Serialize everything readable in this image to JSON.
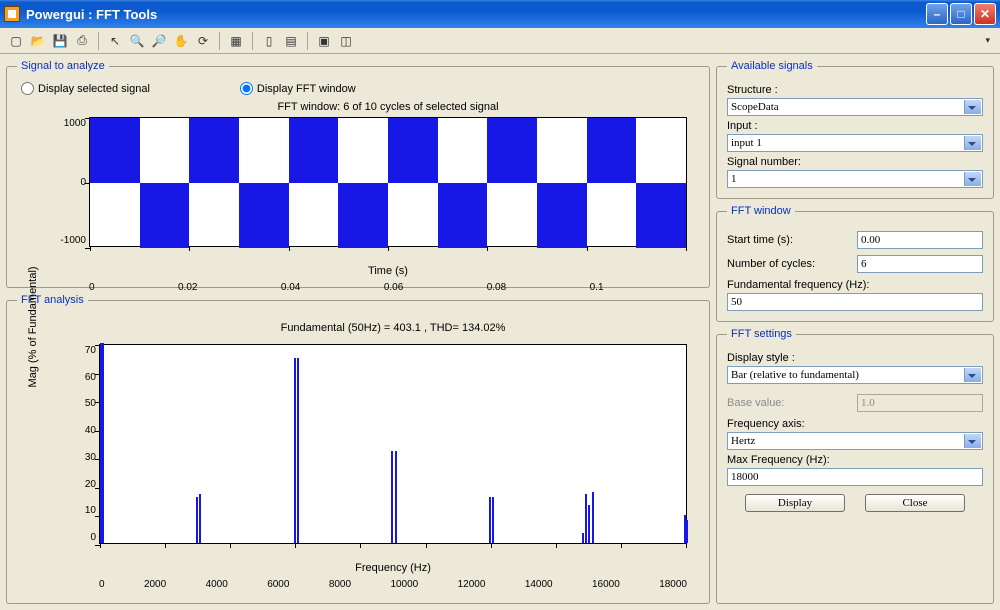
{
  "window": {
    "title": "Powergui : FFT Tools"
  },
  "toolbar": {
    "icons": [
      "new",
      "open",
      "save",
      "print",
      "sep",
      "pointer",
      "zoom-in",
      "zoom-out",
      "pan",
      "rotate",
      "sep",
      "data-cursor",
      "sep",
      "colorbar",
      "legend",
      "sep",
      "dock",
      "undock"
    ]
  },
  "signal_panel": {
    "legend": "Signal to analyze",
    "radio1": "Display selected signal",
    "radio2": "Display FFT window",
    "selected": 2,
    "chart": {
      "title": "FFT window: 6 of 10 cycles of selected signal",
      "ylabel": "",
      "xlabel": "Time (s)",
      "yticks": [
        "1000",
        "0",
        "-1000"
      ],
      "xticks": [
        "0",
        "0.02",
        "0.04",
        "0.06",
        "0.08",
        "0.1",
        ""
      ],
      "xlim": [
        0,
        0.12
      ],
      "ylim": [
        -1000,
        1000
      ],
      "waveform_period": 0.02,
      "amplitude": 1000,
      "color": "#1818e6",
      "background": "#ffffff"
    }
  },
  "fft_panel": {
    "legend": "FFT analysis",
    "title": "Fundamental (50Hz) = 403.1 , THD= 134.02%",
    "ylabel": "Mag (% of Fundamental)",
    "xlabel": "Frequency (Hz)",
    "yticks": [
      "70",
      "60",
      "50",
      "40",
      "30",
      "20",
      "10",
      "0"
    ],
    "xticks": [
      "0",
      "2000",
      "4000",
      "6000",
      "8000",
      "10000",
      "12000",
      "14000",
      "16000",
      "18000"
    ],
    "xlim": [
      0,
      18000
    ],
    "ylim": [
      0,
      78
    ],
    "bars": [
      {
        "x": 0,
        "h": 78
      },
      {
        "x": 50,
        "h": 78
      },
      {
        "x": 2950,
        "h": 18
      },
      {
        "x": 3050,
        "h": 19
      },
      {
        "x": 5950,
        "h": 72
      },
      {
        "x": 6050,
        "h": 72
      },
      {
        "x": 8950,
        "h": 36
      },
      {
        "x": 9050,
        "h": 36
      },
      {
        "x": 11950,
        "h": 18
      },
      {
        "x": 12050,
        "h": 18
      },
      {
        "x": 14800,
        "h": 4
      },
      {
        "x": 14900,
        "h": 19
      },
      {
        "x": 15000,
        "h": 15
      },
      {
        "x": 15100,
        "h": 20
      },
      {
        "x": 17950,
        "h": 11
      },
      {
        "x": 18000,
        "h": 9
      }
    ],
    "color": "#1818e6",
    "background": "#ffffff"
  },
  "available": {
    "legend": "Available signals",
    "structure_label": "Structure :",
    "structure_value": "ScopeData",
    "input_label": "Input :",
    "input_value": "input 1",
    "signalnum_label": "Signal number:",
    "signalnum_value": "1"
  },
  "fftwindow": {
    "legend": "FFT window",
    "start_label": "Start time (s):",
    "start_value": "0.00",
    "cycles_label": "Number of cycles:",
    "cycles_value": "6",
    "fund_label": "Fundamental frequency (Hz):",
    "fund_value": "50"
  },
  "fftsettings": {
    "legend": "FFT settings",
    "displaystyle_label": "Display style :",
    "displaystyle_value": "Bar (relative to fundamental)",
    "base_label": "Base value:",
    "base_value": "1.0",
    "freqaxis_label": "Frequency axis:",
    "freqaxis_value": "Hertz",
    "maxfreq_label": "Max Frequency (Hz):",
    "maxfreq_value": "18000",
    "display_btn": "Display",
    "close_btn": "Close"
  }
}
